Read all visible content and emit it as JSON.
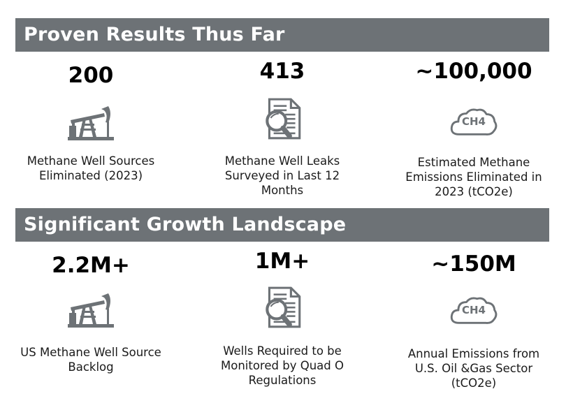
{
  "section1": {
    "title": "Proven Results Thus Far",
    "items": [
      {
        "stat": "200",
        "icon": "pumpjack-icon",
        "lines": [
          "Methane Well Sources",
          "Eliminated (2023)"
        ]
      },
      {
        "stat": "413",
        "icon": "document-magnifier-icon",
        "lines": [
          "Methane Well Leaks",
          "Surveyed in Last 12",
          "Months"
        ]
      },
      {
        "stat": "~100,000",
        "icon": "methane-cloud-icon",
        "lines": [
          "Estimated Methane",
          "Emissions Eliminated in",
          "2023 (tCO2e)"
        ]
      }
    ]
  },
  "section2": {
    "title": "Significant Growth Landscape",
    "items": [
      {
        "stat": "2.2M+",
        "icon": "pumpjack-icon",
        "lines": [
          "US Methane Well Source",
          "Backlog"
        ]
      },
      {
        "stat": "1M+",
        "icon": "document-magnifier-icon",
        "lines": [
          "Wells Required to be",
          "Monitored by Quad O",
          "Regulations"
        ]
      },
      {
        "stat": "~150M",
        "icon": "methane-cloud-icon",
        "lines": [
          "Annual Emissions from",
          "U.S. Oil &Gas Sector",
          "(tCO2e)"
        ]
      }
    ]
  },
  "icon_label": "CH4",
  "colors": {
    "banner": "#6d7276",
    "icon": "#6d7276",
    "text": "#1a1a1a"
  }
}
